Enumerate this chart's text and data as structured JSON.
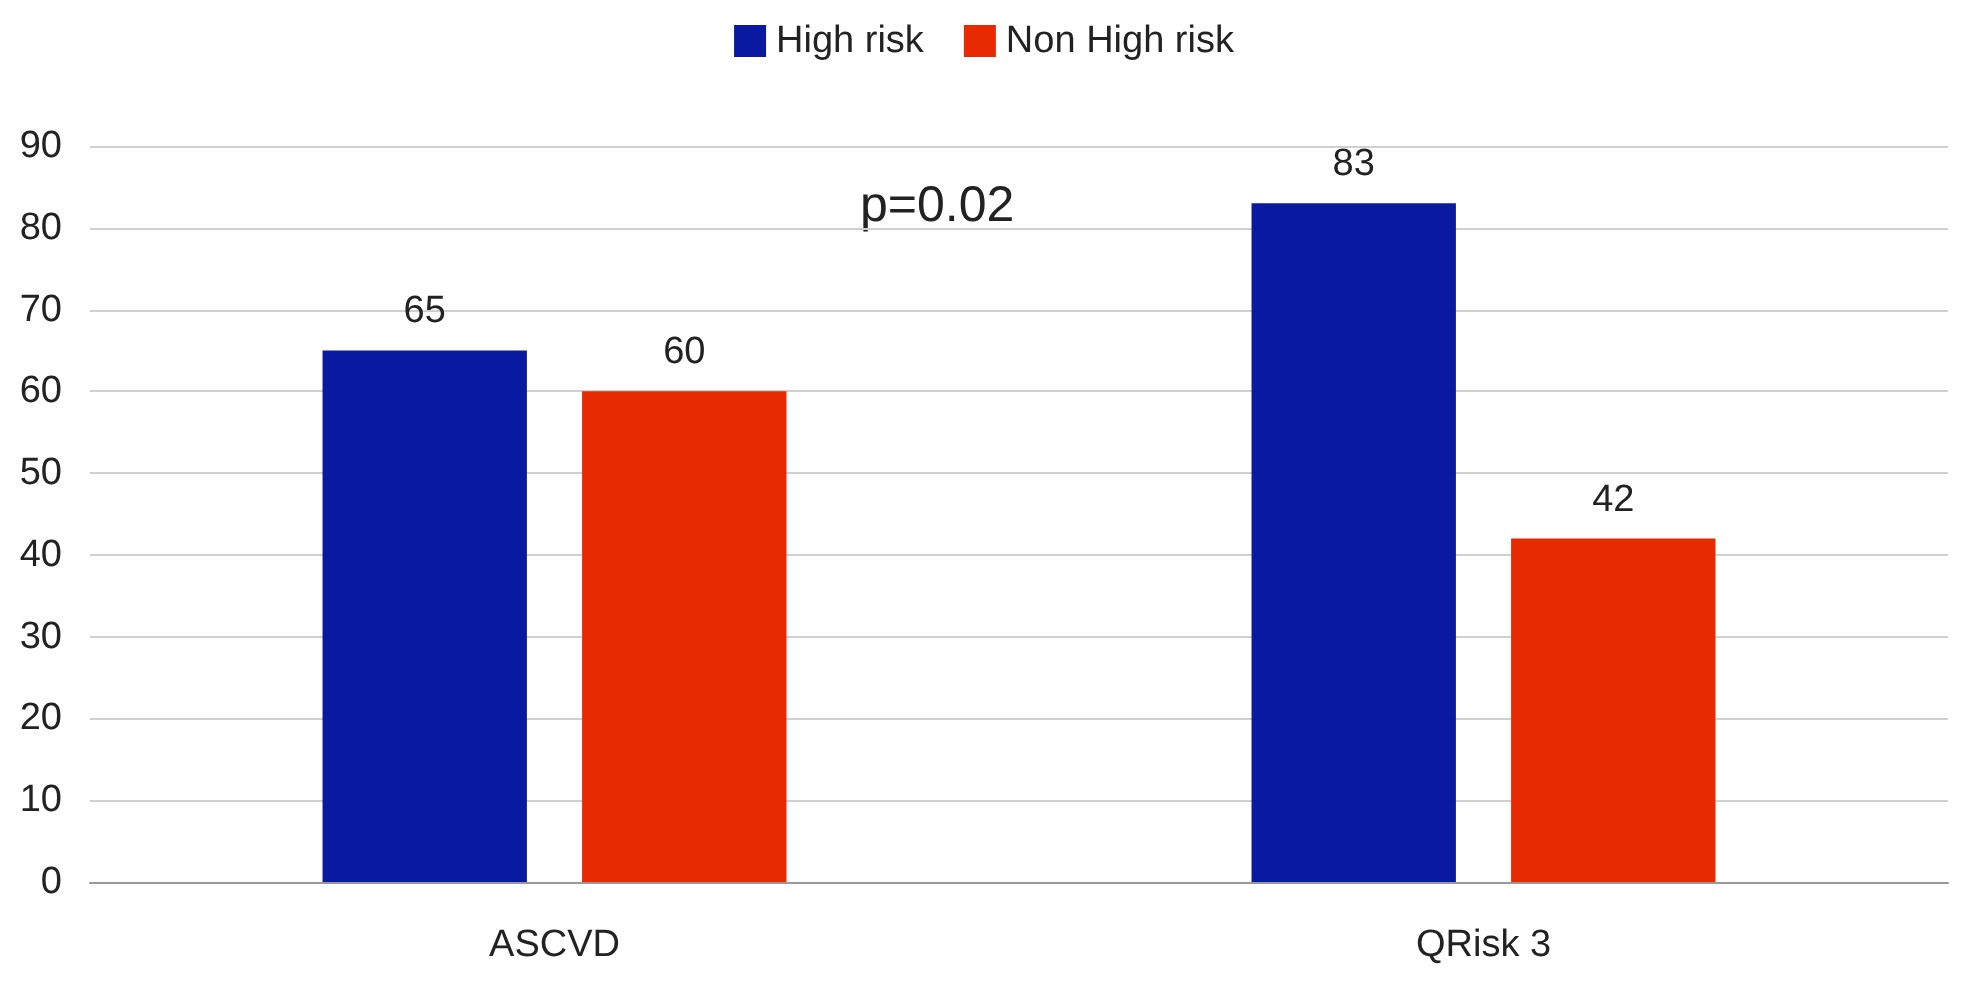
{
  "chart_data": {
    "type": "bar",
    "categories": [
      "ASCVD",
      "QRisk 3"
    ],
    "series": [
      {
        "name": "High risk",
        "color": "#0a1aa0",
        "values": [
          65,
          83
        ]
      },
      {
        "name": "Non High risk",
        "color": "#e82a00",
        "values": [
          60,
          42
        ]
      }
    ],
    "ylim": [
      0,
      90
    ],
    "yticks": [
      0,
      10,
      20,
      30,
      40,
      50,
      60,
      70,
      80,
      90
    ],
    "grid": "y",
    "legend": "top",
    "data_labels": true,
    "annotations": [
      "p=0.02"
    ]
  }
}
